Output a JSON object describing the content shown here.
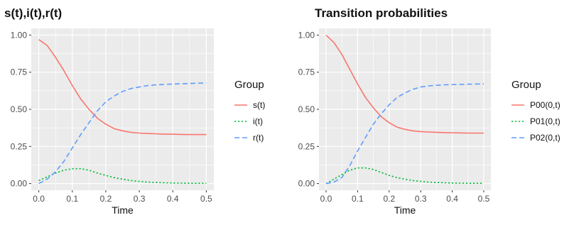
{
  "chart_data": [
    {
      "type": "line",
      "title": "s(t),i(t),r(t)",
      "xlabel": "Time",
      "ylabel": "",
      "xlim": [
        0,
        0.5
      ],
      "ylim": [
        0,
        1.0
      ],
      "x_ticks": [
        "0.0",
        "0.1",
        "0.2",
        "0.3",
        "0.4",
        "0.5"
      ],
      "y_ticks": [
        "0.00",
        "0.25",
        "0.50",
        "0.75",
        "1.00"
      ],
      "grid": true,
      "legend_title": "Group",
      "legend_position": "right",
      "x": [
        0,
        0.025,
        0.05,
        0.075,
        0.1,
        0.125,
        0.15,
        0.175,
        0.2,
        0.225,
        0.25,
        0.275,
        0.3,
        0.325,
        0.35,
        0.375,
        0.4,
        0.425,
        0.45,
        0.475,
        0.5
      ],
      "series": [
        {
          "name": "s(t)",
          "color": "#F8766D",
          "dash": "solid",
          "values": [
            0.97,
            0.93,
            0.85,
            0.76,
            0.66,
            0.57,
            0.5,
            0.44,
            0.4,
            0.37,
            0.355,
            0.345,
            0.34,
            0.337,
            0.335,
            0.333,
            0.332,
            0.331,
            0.33,
            0.33,
            0.33
          ]
        },
        {
          "name": "i(t)",
          "color": "#00BA38",
          "dash": "dotted",
          "values": [
            0.02,
            0.045,
            0.07,
            0.09,
            0.1,
            0.1,
            0.09,
            0.07,
            0.055,
            0.04,
            0.03,
            0.02,
            0.015,
            0.01,
            0.007,
            0.005,
            0.004,
            0.003,
            0.002,
            0.002,
            0.002
          ]
        },
        {
          "name": "r(t)",
          "color": "#619CFF",
          "dash": "dashed",
          "values": [
            0.0,
            0.03,
            0.08,
            0.15,
            0.24,
            0.33,
            0.41,
            0.49,
            0.55,
            0.59,
            0.62,
            0.64,
            0.65,
            0.66,
            0.665,
            0.668,
            0.67,
            0.672,
            0.674,
            0.676,
            0.678
          ]
        }
      ]
    },
    {
      "type": "line",
      "title": "Transition probabilities",
      "xlabel": "Time",
      "ylabel": "",
      "xlim": [
        0,
        0.5
      ],
      "ylim": [
        0,
        1.0
      ],
      "x_ticks": [
        "0.0",
        "0.1",
        "0.2",
        "0.3",
        "0.4",
        "0.5"
      ],
      "y_ticks": [
        "0.00",
        "0.25",
        "0.50",
        "0.75",
        "1.00"
      ],
      "grid": true,
      "legend_title": "Group",
      "legend_position": "right",
      "x": [
        0,
        0.025,
        0.05,
        0.075,
        0.1,
        0.125,
        0.15,
        0.175,
        0.2,
        0.225,
        0.25,
        0.275,
        0.3,
        0.325,
        0.35,
        0.375,
        0.4,
        0.425,
        0.45,
        0.475,
        0.5
      ],
      "series": [
        {
          "name": "P00(0,t)",
          "color": "#F8766D",
          "dash": "solid",
          "values": [
            1.0,
            0.95,
            0.87,
            0.77,
            0.67,
            0.58,
            0.51,
            0.45,
            0.41,
            0.38,
            0.365,
            0.355,
            0.35,
            0.347,
            0.345,
            0.343,
            0.342,
            0.341,
            0.34,
            0.34,
            0.34
          ]
        },
        {
          "name": "P01(0,t)",
          "color": "#00BA38",
          "dash": "dotted",
          "values": [
            0.0,
            0.03,
            0.06,
            0.09,
            0.105,
            0.105,
            0.095,
            0.075,
            0.055,
            0.04,
            0.03,
            0.02,
            0.015,
            0.01,
            0.007,
            0.005,
            0.004,
            0.003,
            0.002,
            0.002,
            0.002
          ]
        },
        {
          "name": "P02(0,t)",
          "color": "#619CFF",
          "dash": "dashed",
          "values": [
            0.0,
            0.01,
            0.04,
            0.12,
            0.22,
            0.31,
            0.4,
            0.47,
            0.53,
            0.58,
            0.61,
            0.635,
            0.65,
            0.658,
            0.662,
            0.665,
            0.667,
            0.668,
            0.669,
            0.67,
            0.671
          ]
        }
      ]
    }
  ]
}
